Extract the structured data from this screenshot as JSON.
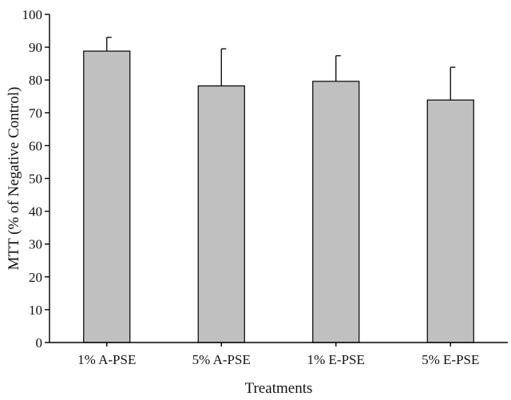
{
  "chart_data": {
    "type": "bar",
    "title": "",
    "xlabel": "Treatments",
    "ylabel": "MTT (% of Negative Control)",
    "ylim": [
      0,
      100
    ],
    "yticks": [
      0,
      10,
      20,
      30,
      40,
      50,
      60,
      70,
      80,
      90,
      100
    ],
    "categories": [
      "1% A-PSE",
      "5% A-PSE",
      "1% E-PSE",
      "5% E-PSE"
    ],
    "series": [
      {
        "values": [
          88.8,
          78.2,
          79.6,
          73.9
        ],
        "error_upper": [
          4.2,
          11.3,
          7.8,
          10.0
        ]
      }
    ],
    "bar_color": "#c0c0c0",
    "grid": false,
    "legend": "none"
  }
}
